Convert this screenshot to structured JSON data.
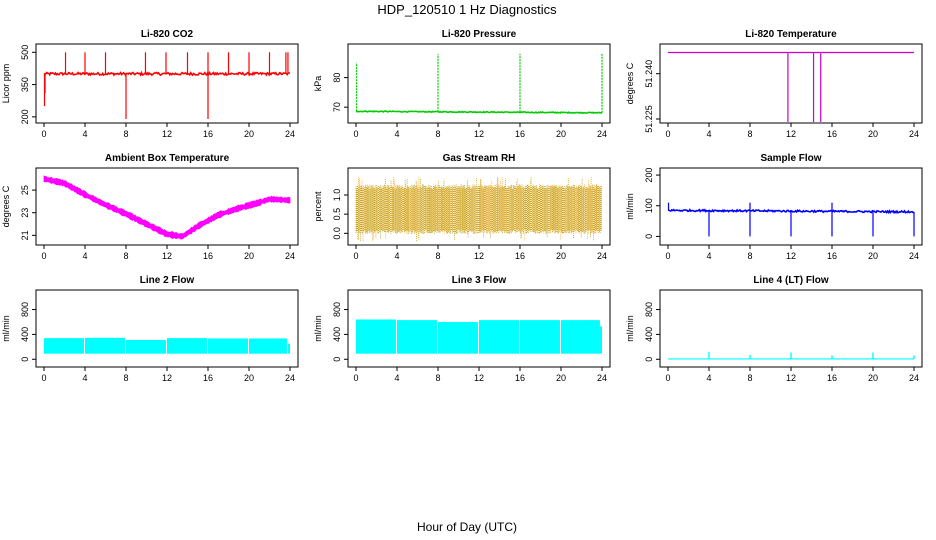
{
  "figure": {
    "title": "HDP_120510  1 Hz Diagnostics",
    "xlabel": "Hour of Day (UTC)"
  },
  "chart_data": [
    {
      "type": "line",
      "title": "Li-820 CO2",
      "ylabel": "Licor ppm",
      "color": "#ff0000",
      "xlim": [
        0,
        24
      ],
      "ylim": [
        190,
        520
      ],
      "xticks": [
        "0",
        "4",
        "8",
        "12",
        "16",
        "20",
        "24"
      ],
      "yticks": [
        "200",
        "350",
        "500"
      ],
      "ytick_values": [
        200,
        350,
        500
      ],
      "baseline": 400,
      "noise": 6,
      "spikes": [
        {
          "x": 0.05,
          "y": 250
        },
        {
          "x": 0.1,
          "y": 310
        },
        {
          "x": 2.1,
          "y": 500
        },
        {
          "x": 4.0,
          "y": 500
        },
        {
          "x": 6.0,
          "y": 500
        },
        {
          "x": 8.0,
          "y": 190
        },
        {
          "x": 9.9,
          "y": 500
        },
        {
          "x": 11.9,
          "y": 500
        },
        {
          "x": 14.0,
          "y": 500
        },
        {
          "x": 16.0,
          "y": 190
        },
        {
          "x": 16.0,
          "y": 500
        },
        {
          "x": 18.0,
          "y": 500
        },
        {
          "x": 20.0,
          "y": 500
        },
        {
          "x": 22.0,
          "y": 500
        },
        {
          "x": 23.6,
          "y": 500
        },
        {
          "x": 23.8,
          "y": 500
        }
      ]
    },
    {
      "type": "line",
      "title": "Li-820 Pressure",
      "ylabel": "kPa",
      "color": "#00cc00",
      "xlim": [
        0,
        24
      ],
      "ylim": [
        66,
        90
      ],
      "xticks": [
        "0",
        "4",
        "8",
        "12",
        "16",
        "20",
        "24"
      ],
      "yticks": [
        "70",
        "80"
      ],
      "ytick_values": [
        70,
        80
      ],
      "baseline_start": 68.6,
      "baseline_end": 68.1,
      "noise": 0.15,
      "spikes": [
        {
          "x": 0.05,
          "y": 85
        },
        {
          "x": 8.0,
          "y": 88
        },
        {
          "x": 16.0,
          "y": 88
        },
        {
          "x": 24.0,
          "y": 88
        }
      ]
    },
    {
      "type": "line",
      "title": "Li-820 Temperature",
      "ylabel": "degrees C",
      "color": "#cc00cc",
      "xlim": [
        0,
        24
      ],
      "ylim": [
        51.225,
        51.2485
      ],
      "xticks": [
        "0",
        "4",
        "8",
        "12",
        "16",
        "20",
        "24"
      ],
      "yticks": [
        "51.225",
        "51.240"
      ],
      "ytick_values": [
        51.225,
        51.24
      ],
      "baseline": 51.247,
      "dips": [
        {
          "x": 11.7,
          "y": 51.225
        },
        {
          "x": 14.2,
          "y": 51.225
        },
        {
          "x": 14.9,
          "y": 51.225
        }
      ]
    },
    {
      "type": "area",
      "title": "Ambient Box Temperature",
      "ylabel": "degrees C",
      "color": "#ff00ff",
      "xlim": [
        0,
        24
      ],
      "ylim": [
        20.5,
        26.6
      ],
      "xticks": [
        "0",
        "4",
        "8",
        "12",
        "16",
        "20",
        "24"
      ],
      "yticks": [
        "21",
        "23",
        "25"
      ],
      "ytick_values": [
        21,
        23,
        25
      ],
      "curve": [
        {
          "x": 0,
          "y": 26.0
        },
        {
          "x": 2,
          "y": 25.6
        },
        {
          "x": 4,
          "y": 24.6
        },
        {
          "x": 6,
          "y": 23.7
        },
        {
          "x": 8,
          "y": 22.9
        },
        {
          "x": 10,
          "y": 22.0
        },
        {
          "x": 12,
          "y": 21.1
        },
        {
          "x": 13.5,
          "y": 20.9
        },
        {
          "x": 15,
          "y": 21.8
        },
        {
          "x": 17,
          "y": 22.8
        },
        {
          "x": 19,
          "y": 23.4
        },
        {
          "x": 21,
          "y": 23.9
        },
        {
          "x": 22,
          "y": 24.2
        },
        {
          "x": 24,
          "y": 24.1
        }
      ],
      "band": 0.45
    },
    {
      "type": "scatter",
      "title": "Gas Stream RH",
      "ylabel": "percent",
      "color": "#ff9900",
      "color2": "#999900",
      "xlim": [
        0,
        24
      ],
      "ylim": [
        -0.2,
        1.6
      ],
      "xticks": [
        "0",
        "4",
        "8",
        "12",
        "16",
        "20",
        "24"
      ],
      "yticks": [
        "0.0",
        "0.5",
        "1.0"
      ],
      "ytick_values": [
        0.0,
        0.5,
        1.0
      ],
      "band_low": 0.05,
      "band_high": 1.22
    },
    {
      "type": "line",
      "title": "Sample Flow",
      "ylabel": "ml/min",
      "color": "#0000ff",
      "xlim": [
        0,
        24
      ],
      "ylim": [
        -15,
        210
      ],
      "xticks": [
        "0",
        "4",
        "8",
        "12",
        "16",
        "20",
        "24"
      ],
      "yticks": [
        "0",
        "100",
        "200"
      ],
      "ytick_values": [
        0,
        100,
        200
      ],
      "baseline_start": 85,
      "baseline_end": 80,
      "noise": 3,
      "spikes": [
        {
          "x": 0.05,
          "y": 110
        },
        {
          "x": 4.0,
          "y": 0
        },
        {
          "x": 8.0,
          "y": 0
        },
        {
          "x": 8.0,
          "y": 110
        },
        {
          "x": 12.0,
          "y": 0
        },
        {
          "x": 16.0,
          "y": 0
        },
        {
          "x": 16.0,
          "y": 110
        },
        {
          "x": 20.0,
          "y": 0
        },
        {
          "x": 24.0,
          "y": 0
        }
      ]
    },
    {
      "type": "area",
      "title": "Line 2 Flow",
      "ylabel": "ml/min",
      "color": "#00ffff",
      "xlim": [
        0,
        24
      ],
      "ylim": [
        -60,
        1050
      ],
      "xticks": [
        "0",
        "4",
        "8",
        "12",
        "16",
        "20",
        "24"
      ],
      "yticks": [
        "0",
        "400",
        "800"
      ],
      "ytick_values": [
        0,
        400,
        800
      ],
      "band_low": 90,
      "segments": [
        {
          "x0": 0,
          "x1": 3.9,
          "y": 340
        },
        {
          "x0": 4.0,
          "x1": 7.9,
          "y": 345
        },
        {
          "x0": 8.0,
          "x1": 11.9,
          "y": 310
        },
        {
          "x0": 12.0,
          "x1": 15.9,
          "y": 340
        },
        {
          "x0": 16.0,
          "x1": 19.9,
          "y": 335
        },
        {
          "x0": 20.0,
          "x1": 23.7,
          "y": 335
        },
        {
          "x0": 23.8,
          "x1": 24.0,
          "y": 250
        }
      ]
    },
    {
      "type": "area",
      "title": "Line 3 Flow",
      "ylabel": "ml/min",
      "color": "#00ffff",
      "xlim": [
        0,
        24
      ],
      "ylim": [
        -60,
        1050
      ],
      "xticks": [
        "0",
        "4",
        "8",
        "12",
        "16",
        "20",
        "24"
      ],
      "yticks": [
        "0",
        "400",
        "800"
      ],
      "ytick_values": [
        0,
        400,
        800
      ],
      "band_low": 90,
      "segments": [
        {
          "x0": 0,
          "x1": 3.9,
          "y": 640
        },
        {
          "x0": 4.0,
          "x1": 7.9,
          "y": 630
        },
        {
          "x0": 8.0,
          "x1": 11.9,
          "y": 600
        },
        {
          "x0": 12.0,
          "x1": 15.9,
          "y": 630
        },
        {
          "x0": 16.0,
          "x1": 19.9,
          "y": 630
        },
        {
          "x0": 20.0,
          "x1": 23.8,
          "y": 630
        },
        {
          "x0": 23.8,
          "x1": 24.0,
          "y": 530
        }
      ]
    },
    {
      "type": "line",
      "title": "Line 4 (LT) Flow",
      "ylabel": "ml/min",
      "color": "#00ffff",
      "xlim": [
        0,
        24
      ],
      "ylim": [
        -60,
        1050
      ],
      "xticks": [
        "0",
        "4",
        "8",
        "12",
        "16",
        "20",
        "24"
      ],
      "yticks": [
        "0",
        "400",
        "800"
      ],
      "ytick_values": [
        0,
        400,
        800
      ],
      "baseline": 5,
      "spikes": [
        {
          "x": 4.0,
          "y": 120
        },
        {
          "x": 8.0,
          "y": 70
        },
        {
          "x": 12.0,
          "y": 110
        },
        {
          "x": 16.0,
          "y": 60
        },
        {
          "x": 20.0,
          "y": 110
        },
        {
          "x": 24.0,
          "y": 60
        }
      ]
    }
  ]
}
